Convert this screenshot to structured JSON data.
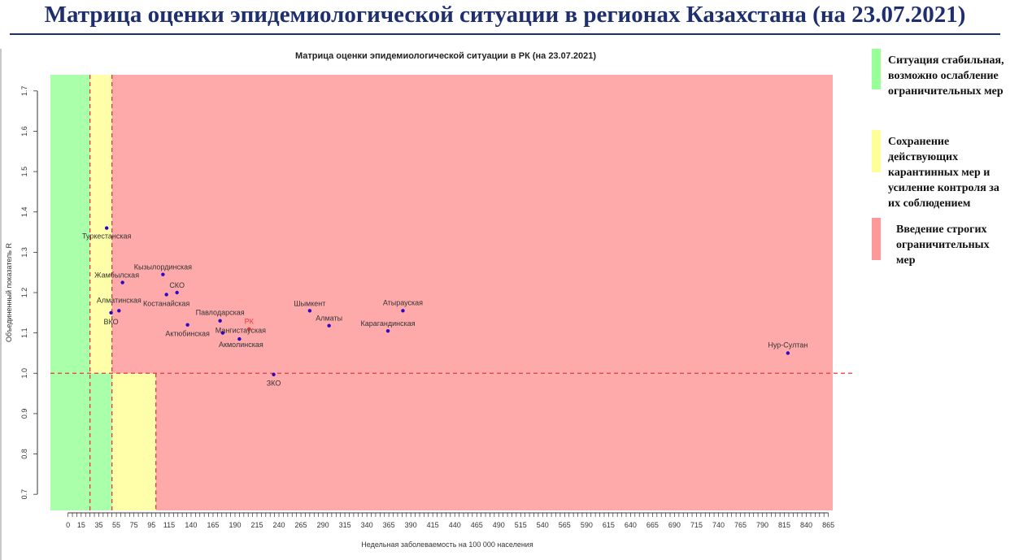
{
  "slide": {
    "title": "Матрица оценки эпидемиологической ситуации в регионах Казахстана (на 23.07.2021)"
  },
  "legend": {
    "items": [
      {
        "label": "Ситуация стабильная, возможно ослабление ограничительных мер",
        "color": "#99ff99"
      },
      {
        "label": "Сохранение действующих карантинных мер и усиление контроля за их соблюдением",
        "color": "#ffff99"
      },
      {
        "label": "Введение строгих ограничительных мер",
        "color": "#ff9999"
      }
    ]
  },
  "chart_data": {
    "type": "scatter",
    "title": "Матрица оценки эпидемиологической ситуации в РК (на 23.07.2021)",
    "xlabel": "Недельная заболеваемость на 100 000 населения",
    "ylabel": "Объединенный показатель R",
    "xlim": [
      -20,
      870
    ],
    "ylim": [
      0.66,
      1.74
    ],
    "x_ticks": [
      "0",
      "15",
      "35",
      "55",
      "75",
      "95",
      "115",
      "140",
      "165",
      "190",
      "215",
      "240",
      "265",
      "290",
      "315",
      "340",
      "365",
      "390",
      "415",
      "440",
      "465",
      "490",
      "515",
      "540",
      "565",
      "590",
      "615",
      "640",
      "665",
      "690",
      "715",
      "740",
      "765",
      "790",
      "815",
      "840",
      "865"
    ],
    "y_ticks": [
      "0.7",
      "0.8",
      "0.9",
      "1.0",
      "1.1",
      "1.2",
      "1.3",
      "1.4",
      "1.5",
      "1.6",
      "1.7"
    ],
    "grid": false,
    "zones": [
      {
        "name": "green",
        "x": [
          -20,
          50
        ],
        "y": [
          0.66,
          1.0
        ],
        "color": "#aaffaa"
      },
      {
        "name": "green",
        "x": [
          -20,
          25
        ],
        "y": [
          1.0,
          1.74
        ],
        "color": "#aaffaa"
      },
      {
        "name": "yellow",
        "x": [
          50,
          100
        ],
        "y": [
          0.66,
          1.0
        ],
        "color": "#ffffaa"
      },
      {
        "name": "yellow",
        "x": [
          25,
          50
        ],
        "y": [
          1.0,
          1.74
        ],
        "color": "#ffffaa"
      },
      {
        "name": "red",
        "x": [
          100,
          870
        ],
        "y": [
          0.66,
          1.0
        ],
        "color": "#ffaaaa"
      },
      {
        "name": "red",
        "x": [
          50,
          870
        ],
        "y": [
          1.0,
          1.74
        ],
        "color": "#ffaaaa"
      }
    ],
    "reference_lines": [
      {
        "axis": "y",
        "value": 1.0,
        "color": "#e8383d"
      },
      {
        "axis": "x",
        "value": 25,
        "color": "#e8383d"
      },
      {
        "axis": "x",
        "value": 50,
        "color": "#e8383d"
      },
      {
        "axis": "x",
        "value": 100,
        "color": "#e8383d"
      }
    ],
    "points": [
      {
        "name": "Туркестанская",
        "x": 44,
        "y": 1.36
      },
      {
        "name": "Кызылординская",
        "x": 108,
        "y": 1.245
      },
      {
        "name": "Жамбылская",
        "x": 62,
        "y": 1.225
      },
      {
        "name": "СКО",
        "x": 124,
        "y": 1.2
      },
      {
        "name": "Костанайская",
        "x": 112,
        "y": 1.195
      },
      {
        "name": "Алматинская",
        "x": 58,
        "y": 1.155
      },
      {
        "name": "ВКО",
        "x": 49,
        "y": 1.15
      },
      {
        "name": "Павлодарская",
        "x": 173,
        "y": 1.13
      },
      {
        "name": "Актюбинская",
        "x": 136,
        "y": 1.12
      },
      {
        "name": "РК",
        "x": 206,
        "y": 1.11,
        "color": "#e8383d"
      },
      {
        "name": "Мангистауская",
        "x": 176,
        "y": 1.1
      },
      {
        "name": "Акмолинская",
        "x": 195,
        "y": 1.085
      },
      {
        "name": "ЗКО",
        "x": 234,
        "y": 0.997
      },
      {
        "name": "Шымкент",
        "x": 275,
        "y": 1.155
      },
      {
        "name": "Алматы",
        "x": 297,
        "y": 1.118
      },
      {
        "name": "Атырауская",
        "x": 381,
        "y": 1.155
      },
      {
        "name": "Карагандинская",
        "x": 364,
        "y": 1.105
      },
      {
        "name": "Нур-Султан",
        "x": 819,
        "y": 1.05
      }
    ]
  }
}
